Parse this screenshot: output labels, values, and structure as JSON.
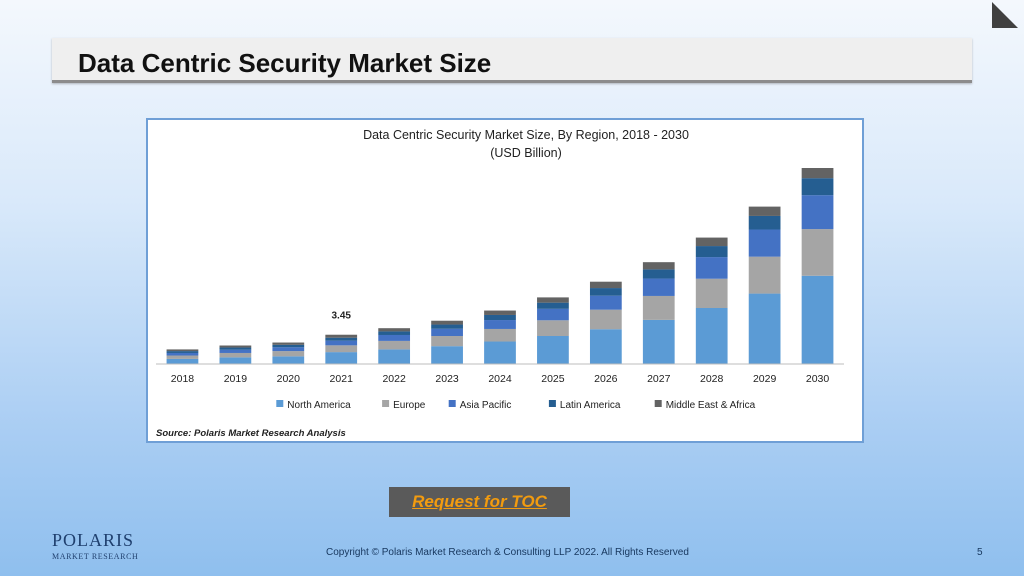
{
  "slide": {
    "title": "Data Centric Security Market Size",
    "toc_label": "Request for TOC",
    "brand_name": "POLARIS",
    "brand_sub": "MARKET RESEARCH",
    "copyright": "Copyright © Polaris Market Research & Consulting LLP 2022. All Rights Reserved",
    "page_number": "5"
  },
  "colors": {
    "North America": "#5b9bd5",
    "Europe": "#a5a5a5",
    "Asia Pacific": "#4472c4",
    "Latin America": "#255e91",
    "Middle East & Africa": "#636363"
  },
  "chart_data": {
    "type": "bar",
    "stacked": true,
    "title": "Data Centric Security Market Size, By Region, 2018 - 2030",
    "subtitle": "(USD Billion)",
    "source": "Source: Polaris  Market Research Analysis",
    "categories": [
      "2018",
      "2019",
      "2020",
      "2021",
      "2022",
      "2023",
      "2024",
      "2025",
      "2026",
      "2027",
      "2028",
      "2029",
      "2030"
    ],
    "series": [
      {
        "name": "North America",
        "values": [
          0.6,
          0.78,
          0.9,
          1.4,
          1.72,
          2.1,
          2.65,
          3.3,
          4.1,
          5.2,
          6.6,
          8.3,
          10.4
        ]
      },
      {
        "name": "Europe",
        "values": [
          0.4,
          0.52,
          0.62,
          0.8,
          1.0,
          1.2,
          1.48,
          1.85,
          2.3,
          2.82,
          3.45,
          4.35,
          5.5
        ]
      },
      {
        "name": "Asia Pacific",
        "values": [
          0.3,
          0.38,
          0.45,
          0.55,
          0.7,
          0.85,
          1.05,
          1.35,
          1.65,
          2.05,
          2.55,
          3.2,
          4.0
        ]
      },
      {
        "name": "Latin America",
        "values": [
          0.22,
          0.26,
          0.29,
          0.35,
          0.42,
          0.5,
          0.6,
          0.73,
          0.9,
          1.08,
          1.3,
          1.6,
          2.0
        ]
      },
      {
        "name": "Middle East & Africa",
        "values": [
          0.2,
          0.24,
          0.27,
          0.35,
          0.38,
          0.45,
          0.52,
          0.62,
          0.75,
          0.85,
          1.0,
          1.1,
          1.2
        ]
      }
    ],
    "annotations": [
      {
        "category": "2021",
        "text": "3.45"
      }
    ],
    "legend_position": "bottom",
    "grid": false
  }
}
